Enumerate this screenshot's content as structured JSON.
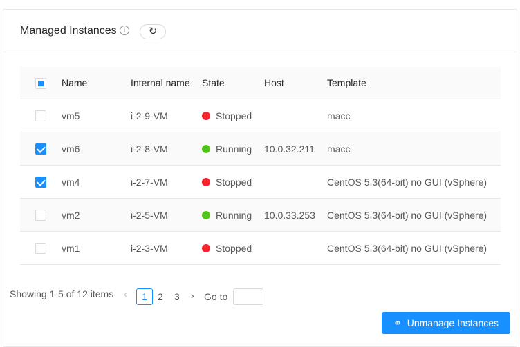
{
  "header": {
    "title": "Managed Instances",
    "info_icon": "info-circle-icon",
    "refresh_icon": "reload-icon"
  },
  "table": {
    "columns": [
      "Name",
      "Internal name",
      "State",
      "Host",
      "Template"
    ],
    "rows": [
      {
        "checked": false,
        "name": "vm5",
        "internal": "i-2-9-VM",
        "state": "Stopped",
        "host": "",
        "template": "macc"
      },
      {
        "checked": true,
        "name": "vm6",
        "internal": "i-2-8-VM",
        "state": "Running",
        "host": "10.0.32.211",
        "template": "macc"
      },
      {
        "checked": true,
        "name": "vm4",
        "internal": "i-2-7-VM",
        "state": "Stopped",
        "host": "",
        "template": "CentOS 5.3(64-bit) no GUI (vSphere)"
      },
      {
        "checked": false,
        "name": "vm2",
        "internal": "i-2-5-VM",
        "state": "Running",
        "host": "10.0.33.253",
        "template": "CentOS 5.3(64-bit) no GUI (vSphere)"
      },
      {
        "checked": false,
        "name": "vm1",
        "internal": "i-2-3-VM",
        "state": "Stopped",
        "host": "",
        "template": "CentOS 5.3(64-bit) no GUI (vSphere)"
      }
    ]
  },
  "state_colors": {
    "Stopped": "#f5222d",
    "Running": "#52c41a"
  },
  "pagination": {
    "summary": "Showing 1-5 of 12 items",
    "pages": [
      "1",
      "2",
      "3"
    ],
    "current": "1",
    "goto_label": "Go to",
    "goto_value": ""
  },
  "actions": {
    "unmanage_label": "Unmanage Instances",
    "unmanage_icon": "disconnect-icon"
  },
  "accent": "#1890ff"
}
